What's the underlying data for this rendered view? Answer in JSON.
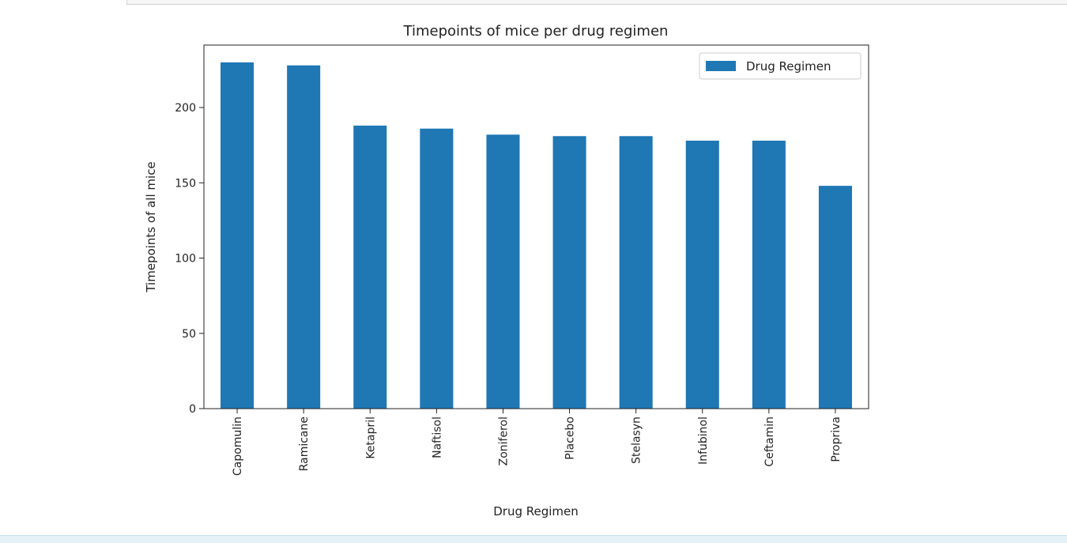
{
  "chart_data": {
    "type": "bar",
    "title": "Timepoints of mice per drug regimen",
    "xlabel": "Drug Regimen",
    "ylabel": "Timepoints of all mice",
    "categories": [
      "Capomulin",
      "Ramicane",
      "Ketapril",
      "Naftisol",
      "Zoniferol",
      "Placebo",
      "Stelasyn",
      "Infubinol",
      "Ceftamin",
      "Propriva"
    ],
    "series": [
      {
        "name": "Drug Regimen",
        "values": [
          230,
          228,
          188,
          186,
          182,
          181,
          181,
          178,
          178,
          148
        ],
        "color": "#1f77b4"
      }
    ],
    "ylim": [
      0,
      241.5
    ],
    "yticks": [
      0,
      50,
      100,
      150,
      200
    ],
    "grid": false,
    "legend": "top-right"
  }
}
